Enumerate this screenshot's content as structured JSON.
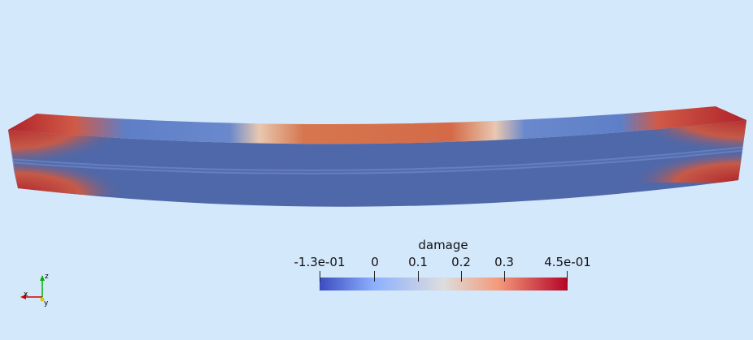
{
  "colorbar": {
    "title": "damage",
    "labels": [
      "-1.3e-01",
      "0",
      "0.1",
      "0.2",
      "0.3",
      "4.5e-01"
    ],
    "colors": [
      "#3b4cc0",
      "#8db0fe",
      "#dddddd",
      "#f49a7b",
      "#b40426"
    ]
  },
  "axes": {
    "x": "x",
    "y": "y",
    "z": "z",
    "x_color": "#cc0000",
    "y_color": "#d8c800",
    "z_color": "#00b000"
  },
  "scene": {
    "background": "#d4e8fc",
    "object": "beam"
  }
}
